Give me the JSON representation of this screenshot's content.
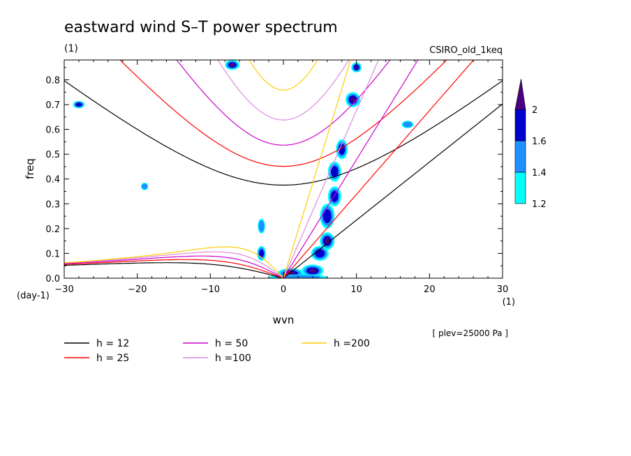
{
  "chart_data": {
    "type": "contour",
    "title": "eastward wind S–T power spectrum",
    "units_label": "(1)",
    "model_label": "CSIRO_old_1keq",
    "xlabel": "wvn",
    "ylabel": "freq",
    "x_units": "(1)",
    "y_units": "(day-1)",
    "level_note": "[ plev=25000 Pa ]",
    "xlim": [
      -30,
      30
    ],
    "ylim": [
      0,
      0.88
    ],
    "x_ticks": [
      -30,
      -20,
      -10,
      0,
      10,
      20,
      30
    ],
    "x_tick_labels": [
      "−30",
      "−20",
      "−10",
      "0",
      "10",
      "20",
      "30"
    ],
    "y_ticks": [
      0,
      0.1,
      0.2,
      0.3,
      0.4,
      0.5,
      0.6,
      0.7,
      0.8
    ],
    "y_tick_labels": [
      "0.0",
      "0.1",
      "0.2",
      "0.3",
      "0.4",
      "0.5",
      "0.6",
      "0.7",
      "0.8"
    ],
    "colorbar": {
      "levels": [
        1.2,
        1.4,
        1.6,
        2
      ],
      "labels": [
        "1.2",
        "1.4",
        "1.6",
        "2"
      ],
      "colors": [
        "#00ffff",
        "#1e90ff",
        "#0000cd",
        "#4b0082"
      ]
    },
    "dispersion_curves": [
      {
        "name": "h = 12",
        "h": 12,
        "color": "#000000"
      },
      {
        "name": "h = 25",
        "h": 25,
        "color": "#ff0000"
      },
      {
        "name": "h = 50",
        "h": 50,
        "color": "#cc00cc"
      },
      {
        "name": "h =100",
        "h": 100,
        "color": "#dd88dd"
      },
      {
        "name": "h =200",
        "h": 200,
        "color": "#ffcc00"
      }
    ],
    "power_blobs": [
      {
        "k": 1,
        "f": 0.02,
        "rk": 1.8,
        "rf": 0.02,
        "level": 4
      },
      {
        "k": 4,
        "f": 0.03,
        "rk": 1.5,
        "rf": 0.025,
        "level": 4
      },
      {
        "k": 5,
        "f": 0.1,
        "rk": 1.2,
        "rf": 0.03,
        "level": 3
      },
      {
        "k": 6,
        "f": 0.15,
        "rk": 1.0,
        "rf": 0.035,
        "level": 4
      },
      {
        "k": 6,
        "f": 0.25,
        "rk": 1.0,
        "rf": 0.05,
        "level": 3
      },
      {
        "k": 7,
        "f": 0.33,
        "rk": 0.9,
        "rf": 0.04,
        "level": 3
      },
      {
        "k": 7,
        "f": 0.43,
        "rk": 0.9,
        "rf": 0.04,
        "level": 3
      },
      {
        "k": 8,
        "f": 0.52,
        "rk": 0.8,
        "rf": 0.04,
        "level": 3
      },
      {
        "k": 9.5,
        "f": 0.72,
        "rk": 1.0,
        "rf": 0.03,
        "level": 4
      },
      {
        "k": 10,
        "f": 0.85,
        "rk": 0.7,
        "rf": 0.02,
        "level": 4
      },
      {
        "k": -3,
        "f": 0.1,
        "rk": 0.6,
        "rf": 0.03,
        "level": 3
      },
      {
        "k": -3,
        "f": 0.21,
        "rk": 0.5,
        "rf": 0.03,
        "level": 2
      },
      {
        "k": -7,
        "f": 0.86,
        "rk": 1.0,
        "rf": 0.02,
        "level": 4
      },
      {
        "k": -28,
        "f": 0.7,
        "rk": 0.8,
        "rf": 0.015,
        "level": 3
      },
      {
        "k": -19,
        "f": 0.37,
        "rk": 0.5,
        "rf": 0.015,
        "level": 2
      },
      {
        "k": 17,
        "f": 0.62,
        "rk": 0.8,
        "rf": 0.015,
        "level": 2
      },
      {
        "k": 2,
        "f": 0.005,
        "rk": 4.0,
        "rf": 0.01,
        "level": 2
      }
    ]
  }
}
